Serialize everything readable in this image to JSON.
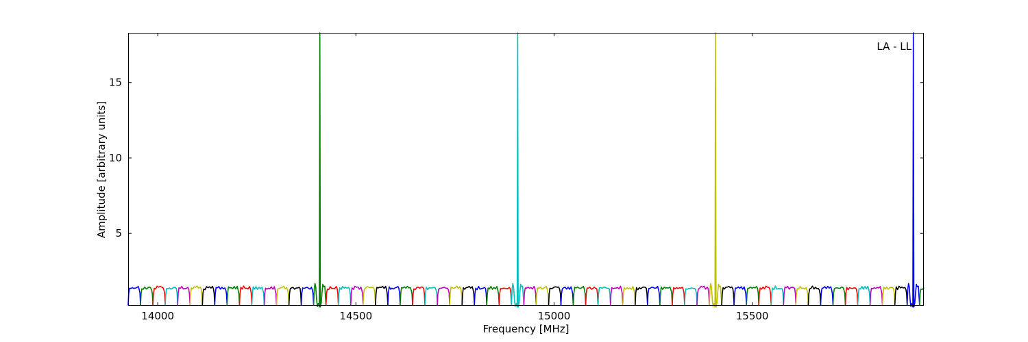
{
  "figure": {
    "background_color": "#ffffff",
    "frame_color": "#000000"
  },
  "chart_data": {
    "type": "line",
    "title": "",
    "xlabel": "Frequency [MHz]",
    "ylabel": "Amplitude [arbitrary units]",
    "xlim": [
      13925.4,
      15933
    ],
    "ylim": [
      0.2,
      18.3
    ],
    "xticks": [
      14000,
      14500,
      15000,
      15500
    ],
    "yticks": [
      5,
      10,
      15
    ],
    "grid": false,
    "tick_direction": "in",
    "legend": {
      "label": "LA - LL",
      "position": "upper-right"
    },
    "color_cycle": [
      "#0000ff",
      "#008000",
      "#ff0000",
      "#00bfbf",
      "#bf00bf",
      "#bfbf00",
      "#000000"
    ],
    "comb": {
      "description": "Contiguous bandpass-shaped subband segments spanning the whole frequency axis; colors cycle through color_cycle starting with blue at the left edge; each segment rises steeply from a notch, holds a noisy plateau and falls back to a notch shared with the next segment",
      "first_segment_start_mhz": 13925.4,
      "segment_width_mhz": 31.2,
      "segment_count": 65,
      "plateau_amplitude": 1.4,
      "edge_notch_amplitude": 0.25
    },
    "spikes": [
      {
        "freq_mhz": 14409,
        "color": "#008000",
        "peak_amplitude": 18.3,
        "clipped_at_top": true
      },
      {
        "freq_mhz": 14908,
        "color": "#00bfbf",
        "peak_amplitude": 18.3,
        "clipped_at_top": true
      },
      {
        "freq_mhz": 15407,
        "color": "#bfbf00",
        "peak_amplitude": 18.3,
        "clipped_at_top": true
      },
      {
        "freq_mhz": 15907,
        "color": "#0000ff",
        "peak_amplitude": 18.3,
        "clipped_at_top": true
      }
    ]
  }
}
